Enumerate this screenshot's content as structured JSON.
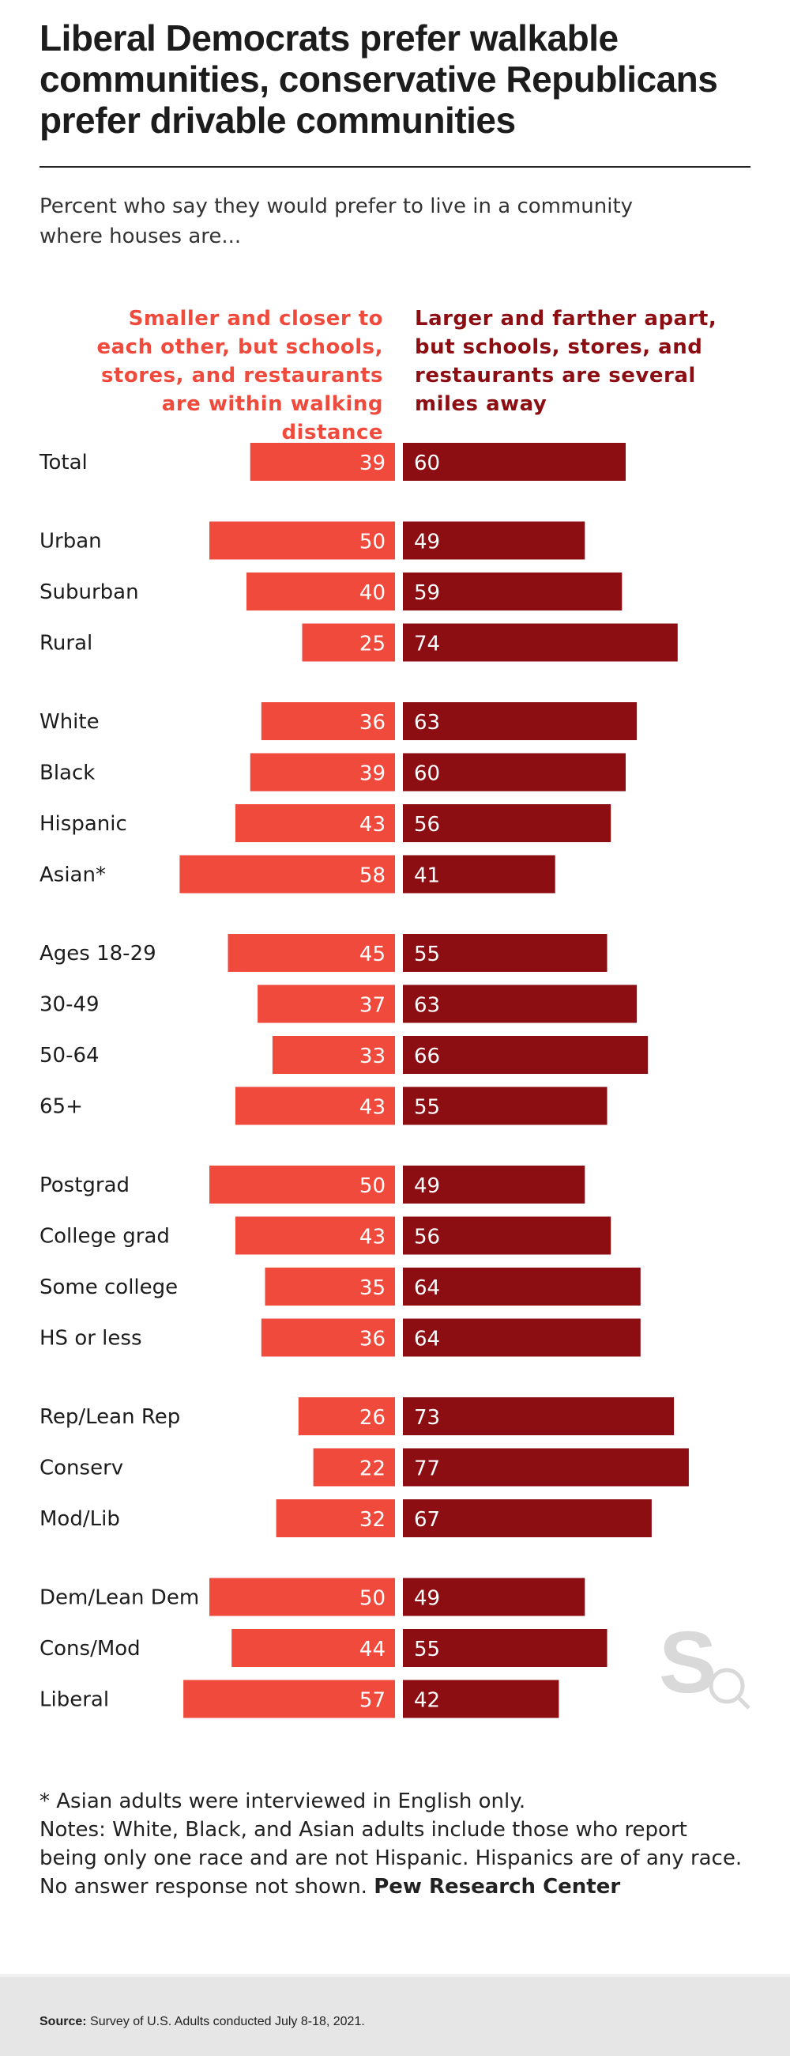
{
  "title": "Liberal Democrats prefer walkable communities, conservative Republicans prefer drivable communities",
  "subtitle": "Percent who say they would prefer to live in a community where houses are...",
  "colors": {
    "left": "#f04a3c",
    "right": "#8c0d12"
  },
  "chart_data": {
    "type": "bar",
    "orientation": "horizontal-diverging",
    "series": [
      {
        "name": "Smaller and closer to each other, but schools, stores, and restaurants are within walking distance",
        "values": [
          39,
          50,
          40,
          25,
          36,
          39,
          43,
          58,
          45,
          37,
          33,
          43,
          50,
          43,
          35,
          36,
          26,
          22,
          32,
          50,
          44,
          57
        ]
      },
      {
        "name": "Larger and farther apart, but schools, stores, and restaurants are several miles away",
        "values": [
          60,
          49,
          59,
          74,
          63,
          60,
          56,
          41,
          55,
          63,
          66,
          55,
          49,
          56,
          64,
          64,
          73,
          77,
          67,
          49,
          55,
          42
        ]
      }
    ],
    "groups": [
      [
        "Total"
      ],
      [
        "Urban",
        "Suburban",
        "Rural"
      ],
      [
        "White",
        "Black",
        "Hispanic",
        "Asian*"
      ],
      [
        "Ages 18-29",
        "30-49",
        "50-64",
        "65+"
      ],
      [
        "Postgrad",
        "College grad",
        "Some college",
        "HS or less"
      ],
      [
        "Rep/Lean Rep",
        "Conserv",
        "Mod/Lib"
      ],
      [
        "Dem/Lean Dem",
        "Cons/Mod",
        "Liberal"
      ]
    ],
    "left_header": "Smaller and closer to each other, but schools, stores, and restaurants are within walking distance",
    "right_header": "Larger and farther apart, but schools, stores, and restaurants are several miles away",
    "xlim": [
      0,
      100
    ]
  },
  "notes": {
    "asterisk": "* Asian adults were interviewed in English only.",
    "text": "Notes: White, Black, and Asian adults include those who report being only one race and are not Hispanic. Hispanics are of any race. No answer response not shown.",
    "org": "Pew Research Center"
  },
  "source": {
    "label": "Source:",
    "text": "Survey of U.S. Adults conducted July 8-18, 2021."
  },
  "logo": {
    "icon": "sq-logo-icon"
  }
}
